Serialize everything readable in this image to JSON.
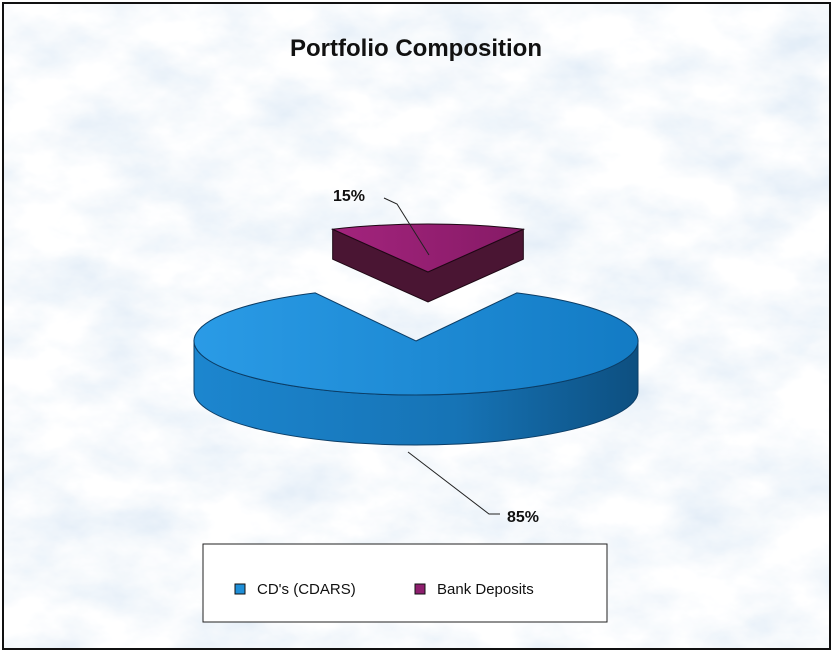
{
  "chart_data": {
    "type": "pie",
    "style": "3d-exploded",
    "title": "Portfolio Composition",
    "categories": [
      "CD's (CDARS)",
      "Bank Deposits"
    ],
    "values": [
      85,
      15
    ],
    "labels": [
      "85%",
      "15%"
    ],
    "colors": [
      "#1f8fd8",
      "#8e1f6e"
    ],
    "legend_position": "bottom",
    "background": "marble-texture"
  }
}
